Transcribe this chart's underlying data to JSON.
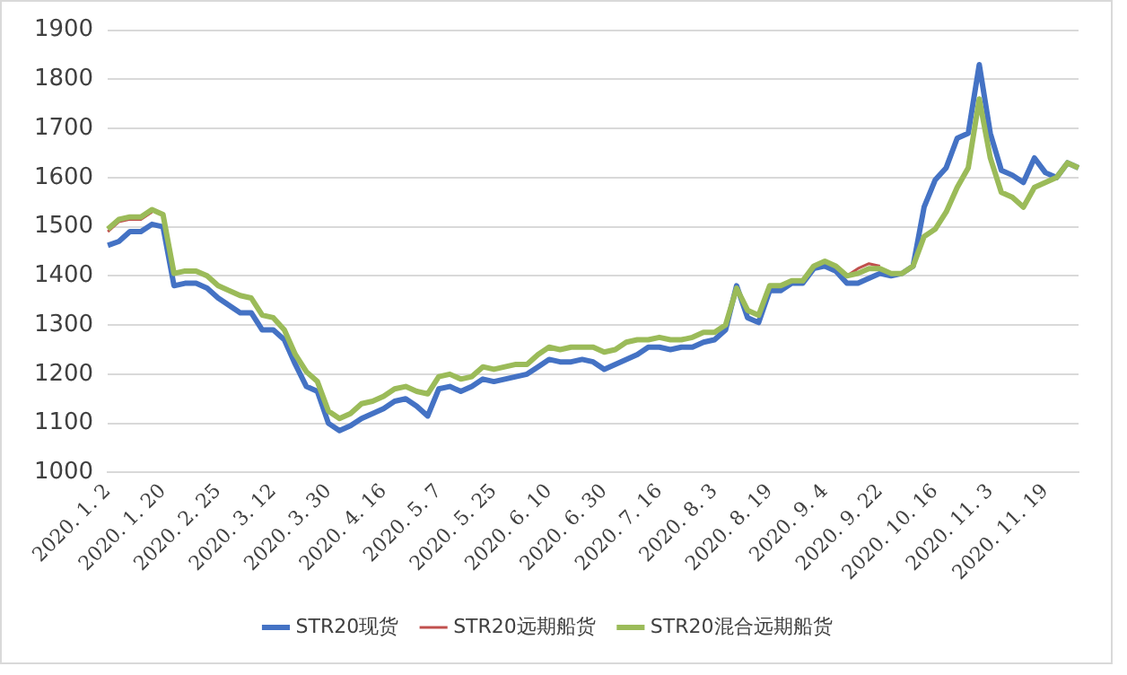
{
  "chart_data": {
    "type": "line",
    "categories": [
      "2020. 1. 2",
      null,
      null,
      null,
      null,
      "2020. 1. 20",
      null,
      null,
      null,
      null,
      "2020. 2. 25",
      null,
      null,
      null,
      null,
      "2020. 3. 12",
      null,
      null,
      null,
      null,
      "2020. 3. 30",
      null,
      null,
      null,
      null,
      "2020. 4. 16",
      null,
      null,
      null,
      null,
      "2020. 5. 7",
      null,
      null,
      null,
      null,
      "2020. 5. 25",
      null,
      null,
      null,
      null,
      "2020. 6. 10",
      null,
      null,
      null,
      null,
      "2020. 6. 30",
      null,
      null,
      null,
      null,
      "2020. 7. 16",
      null,
      null,
      null,
      null,
      "2020. 8. 3",
      null,
      null,
      null,
      null,
      "2020. 8. 19",
      null,
      null,
      null,
      null,
      "2020. 9. 4",
      null,
      null,
      null,
      null,
      "2020. 9. 22",
      null,
      null,
      null,
      null,
      "2020. 10. 16",
      null,
      null,
      null,
      null,
      "2020. 11. 3",
      null,
      null,
      null,
      null,
      "2020. 11. 19",
      null,
      null,
      null
    ],
    "series": [
      {
        "name": "STR20现货",
        "color": "#4472c4",
        "values": [
          1462,
          1470,
          1490,
          1490,
          1505,
          1500,
          1380,
          1385,
          1385,
          1375,
          1355,
          1340,
          1325,
          1325,
          1290,
          1290,
          1270,
          1220,
          1175,
          1165,
          1100,
          1085,
          1095,
          1110,
          1120,
          1130,
          1145,
          1150,
          1135,
          1115,
          1170,
          1175,
          1165,
          1175,
          1190,
          1185,
          1190,
          1195,
          1200,
          1215,
          1230,
          1225,
          1225,
          1230,
          1225,
          1210,
          1220,
          1230,
          1240,
          1255,
          1255,
          1250,
          1255,
          1255,
          1265,
          1270,
          1290,
          1380,
          1315,
          1305,
          1370,
          1370,
          1385,
          1385,
          1415,
          1420,
          1410,
          1385,
          1385,
          1395,
          1405,
          1400,
          1405,
          1420,
          1540,
          1595,
          1620,
          1680,
          1690,
          1830,
          1690,
          1615,
          1605,
          1590,
          1640,
          1610,
          1600,
          1630,
          1620
        ]
      },
      {
        "name": "STR20远期船货",
        "color": "#c0504d",
        "values": [
          1490,
          1510,
          1515,
          1515,
          1530,
          null,
          null,
          null,
          null,
          null,
          null,
          null,
          null,
          null,
          null,
          null,
          null,
          null,
          null,
          null,
          null,
          null,
          null,
          null,
          null,
          null,
          null,
          null,
          null,
          null,
          null,
          null,
          null,
          null,
          null,
          null,
          null,
          null,
          null,
          null,
          null,
          null,
          null,
          null,
          null,
          null,
          null,
          null,
          null,
          null,
          null,
          null,
          null,
          null,
          null,
          null,
          null,
          null,
          null,
          null,
          null,
          null,
          null,
          null,
          null,
          null,
          null,
          1400,
          1415,
          1425,
          1420,
          null,
          null,
          null,
          null,
          null,
          null,
          null,
          null,
          null,
          null,
          null,
          null,
          null,
          null,
          null,
          null,
          null,
          null
        ]
      },
      {
        "name": "STR20混合远期船货",
        "color": "#9bbb59",
        "values": [
          1495,
          1515,
          1520,
          1520,
          1535,
          1525,
          1405,
          1410,
          1410,
          1400,
          1380,
          1370,
          1360,
          1355,
          1320,
          1315,
          1290,
          1240,
          1205,
          1185,
          1125,
          1110,
          1120,
          1140,
          1145,
          1155,
          1170,
          1175,
          1165,
          1160,
          1195,
          1200,
          1190,
          1195,
          1215,
          1210,
          1215,
          1220,
          1220,
          1240,
          1255,
          1250,
          1255,
          1255,
          1255,
          1245,
          1250,
          1265,
          1270,
          1270,
          1275,
          1270,
          1270,
          1275,
          1285,
          1285,
          1300,
          1375,
          1330,
          1320,
          1380,
          1380,
          1390,
          1390,
          1420,
          1430,
          1420,
          1400,
          1405,
          1415,
          1415,
          1405,
          1405,
          1420,
          1480,
          1495,
          1530,
          1580,
          1620,
          1760,
          1640,
          1570,
          1560,
          1540,
          1580,
          1590,
          1600,
          1630,
          1620
        ]
      }
    ],
    "ylim": [
      1000,
      1900
    ],
    "yticks": [
      1000,
      1100,
      1200,
      1300,
      1400,
      1500,
      1600,
      1700,
      1800,
      1900
    ],
    "grid": "y",
    "legend": "bottom",
    "marker": "none",
    "line_style": "solid"
  }
}
